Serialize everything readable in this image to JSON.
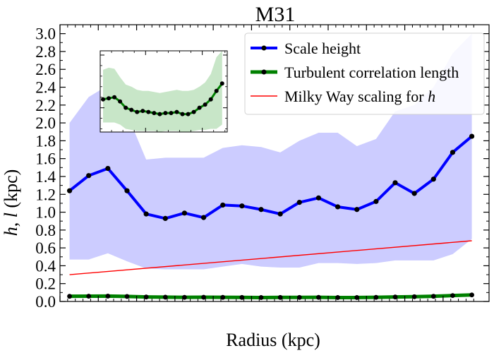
{
  "chart_data": {
    "type": "line",
    "title": "M31",
    "xlabel": "Radius (kpc)",
    "ylabel": "h, l (kpc)",
    "xlim": [
      6,
      17.2
    ],
    "ylim": [
      0,
      3.1
    ],
    "xticks": [
      6,
      7,
      8,
      9,
      10,
      11,
      12,
      13,
      14,
      15,
      16
    ],
    "yticks": [
      0.0,
      0.2,
      0.4,
      0.6,
      0.8,
      1.0,
      1.2,
      1.4,
      1.6,
      1.8,
      2.0,
      2.2,
      2.4,
      2.6,
      2.8,
      3.0
    ],
    "legend_position": "top-right",
    "x": [
      6.25,
      6.75,
      7.25,
      7.75,
      8.25,
      8.75,
      9.25,
      9.75,
      10.25,
      10.75,
      11.25,
      11.75,
      12.25,
      12.75,
      13.25,
      13.75,
      14.25,
      14.75,
      15.25,
      15.75,
      16.25,
      16.75
    ],
    "series": [
      {
        "name": "Scale height",
        "color": "#0000ff",
        "marker": "dot",
        "values": [
          1.24,
          1.41,
          1.49,
          1.24,
          0.98,
          0.93,
          0.99,
          0.94,
          1.08,
          1.07,
          1.03,
          0.98,
          1.11,
          1.16,
          1.06,
          1.03,
          1.12,
          1.33,
          1.21,
          1.37,
          1.67,
          1.85
        ],
        "band_upper": [
          2.0,
          2.29,
          2.42,
          2.1,
          1.59,
          1.61,
          1.61,
          1.61,
          1.72,
          1.75,
          1.73,
          1.67,
          1.8,
          1.89,
          1.89,
          1.74,
          1.82,
          2.13,
          2.2,
          2.4,
          2.78,
          3.0
        ],
        "band_lower": [
          0.47,
          0.47,
          0.54,
          0.45,
          0.37,
          0.36,
          0.36,
          0.36,
          0.39,
          0.42,
          0.39,
          0.38,
          0.38,
          0.43,
          0.43,
          0.42,
          0.43,
          0.46,
          0.46,
          0.46,
          0.53,
          0.7
        ],
        "band_color": "#ccccff"
      },
      {
        "name": "Turbulent correlation length",
        "color": "#008000",
        "marker": "dot",
        "values": [
          0.058,
          0.059,
          0.06,
          0.056,
          0.05,
          0.048,
          0.046,
          0.047,
          0.046,
          0.045,
          0.044,
          0.045,
          0.045,
          0.046,
          0.044,
          0.044,
          0.046,
          0.05,
          0.053,
          0.058,
          0.066,
          0.073
        ]
      },
      {
        "name": "Milky Way scaling for h",
        "color": "#ff0000",
        "x": [
          6.25,
          16.75
        ],
        "values": [
          0.3,
          0.68
        ]
      }
    ],
    "inset": {
      "xlim": [
        6,
        17.2
      ],
      "ylim": [
        0.027,
        0.104
      ],
      "xticks": [
        10,
        15
      ],
      "yticks": [
        0.05,
        0.1
      ],
      "ytick_labels": [
        "0.05",
        "0.10"
      ],
      "x": [
        6.25,
        6.75,
        7.25,
        7.75,
        8.25,
        8.75,
        9.25,
        9.75,
        10.25,
        10.75,
        11.25,
        11.75,
        12.25,
        12.75,
        13.25,
        13.75,
        14.25,
        14.75,
        15.25,
        15.75,
        16.25,
        16.75
      ],
      "values": [
        0.058,
        0.059,
        0.06,
        0.056,
        0.05,
        0.048,
        0.046,
        0.047,
        0.046,
        0.045,
        0.044,
        0.045,
        0.045,
        0.046,
        0.044,
        0.044,
        0.046,
        0.05,
        0.053,
        0.058,
        0.066,
        0.073
      ],
      "band_upper": [
        0.086,
        0.088,
        0.087,
        0.079,
        0.072,
        0.07,
        0.067,
        0.066,
        0.066,
        0.065,
        0.064,
        0.065,
        0.066,
        0.067,
        0.066,
        0.066,
        0.067,
        0.07,
        0.074,
        0.082,
        0.098,
        0.104
      ],
      "band_lower": [
        0.036,
        0.036,
        0.036,
        0.034,
        0.03,
        0.029,
        0.028,
        0.028,
        0.028,
        0.028,
        0.027,
        0.028,
        0.028,
        0.028,
        0.027,
        0.027,
        0.028,
        0.029,
        0.029,
        0.03,
        0.03,
        0.034
      ],
      "color": "#008000",
      "band_color": "#c8e6c8"
    }
  }
}
